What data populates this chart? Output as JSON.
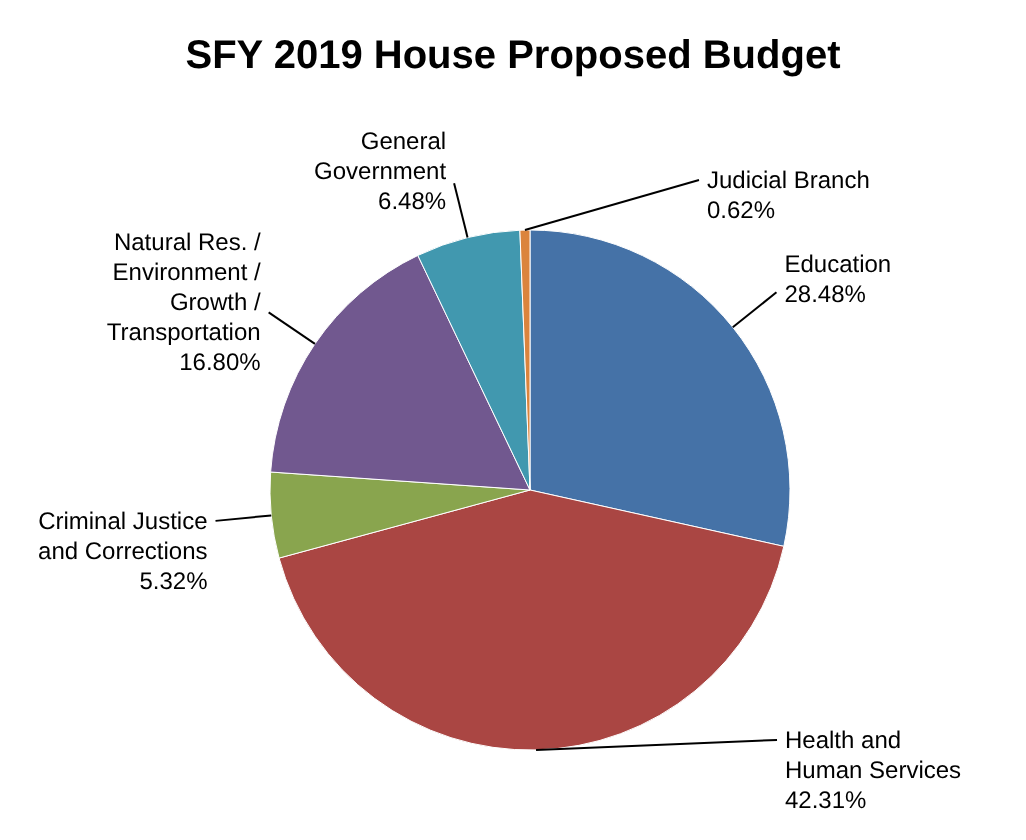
{
  "chart_data": {
    "type": "pie",
    "title": "SFY 2019 House Proposed Budget",
    "categories": [
      "Education",
      "Health and\nHuman Services",
      "Criminal Justice\nand Corrections",
      "Natural Res. /\nEnvironment /\nGrowth /\nTransportation",
      "General\nGovernment",
      "Judicial Branch"
    ],
    "values": [
      28.48,
      42.31,
      5.32,
      16.8,
      6.48,
      0.62
    ],
    "value_labels": [
      "28.48%",
      "42.31%",
      "5.32%",
      "16.80%",
      "6.48%",
      "0.62%"
    ],
    "colors": [
      "#4572a7",
      "#aa4643",
      "#89a54e",
      "#71588f",
      "#4198af",
      "#db843d"
    ],
    "legend": false
  }
}
